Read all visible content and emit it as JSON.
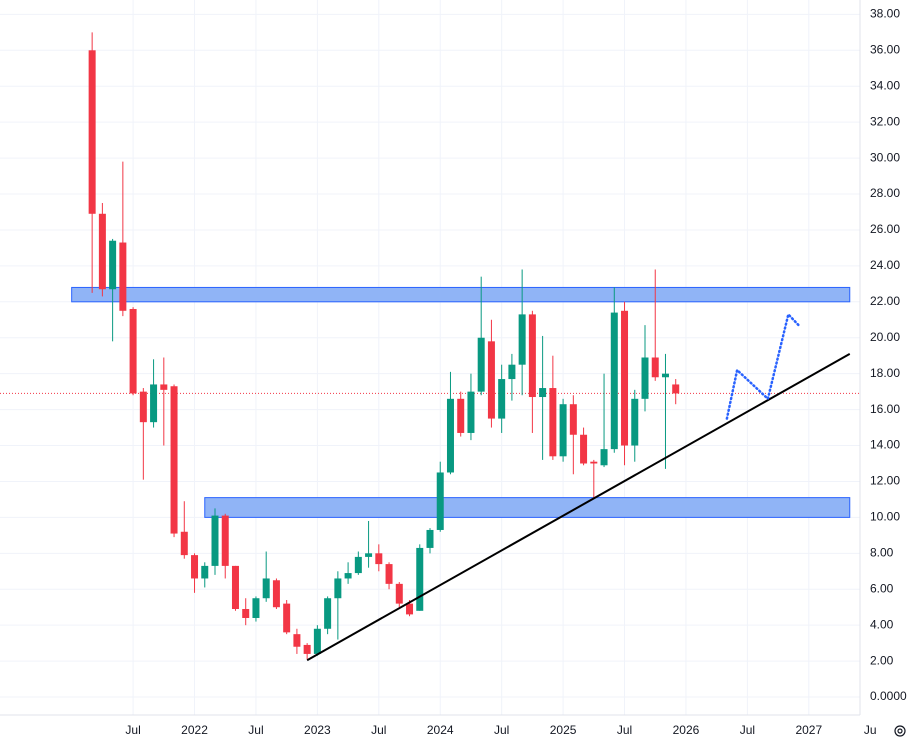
{
  "chart_data": {
    "type": "candlestick",
    "x": [
      "2021-03",
      "2021-04",
      "2021-05",
      "2021-06",
      "2021-07",
      "2021-08",
      "2021-09",
      "2021-10",
      "2021-11",
      "2021-12",
      "2022-01",
      "2022-02",
      "2022-03",
      "2022-04",
      "2022-05",
      "2022-06",
      "2022-07",
      "2022-08",
      "2022-09",
      "2022-10",
      "2022-11",
      "2022-12",
      "2023-01",
      "2023-02",
      "2023-03",
      "2023-04",
      "2023-05",
      "2023-06",
      "2023-07",
      "2023-08",
      "2023-09",
      "2023-10",
      "2023-11",
      "2023-12",
      "2024-01",
      "2024-02",
      "2024-03",
      "2024-04",
      "2024-05",
      "2024-06",
      "2024-07",
      "2024-08",
      "2024-09",
      "2024-10",
      "2024-11",
      "2024-12",
      "2025-01",
      "2025-02",
      "2025-03",
      "2025-04",
      "2025-05",
      "2025-06",
      "2025-07",
      "2025-08",
      "2025-09",
      "2025-10",
      "2025-11",
      "2025-12"
    ],
    "open": [
      36,
      26.9,
      22.7,
      25.3,
      21.6,
      17,
      15.3,
      17.4,
      17.3,
      9.2,
      7.9,
      6.6,
      7.3,
      10.1,
      7.3,
      4.9,
      4.4,
      5.5,
      6.5,
      5.2,
      3.5,
      2.9,
      2.4,
      3.8,
      5.5,
      6.6,
      6.9,
      7.8,
      8.0,
      7.4,
      6.3,
      5.2,
      4.8,
      8.3,
      9.3,
      12.5,
      16.6,
      14.7,
      17.0,
      19.8,
      15.5,
      17.7,
      18.5,
      21.3,
      16.7,
      17.2,
      13.4,
      16.3,
      14.6,
      13.1,
      12.9,
      13.8,
      21.5,
      14.0,
      16.6,
      18.9,
      17.8,
      17.4
    ],
    "high": [
      37,
      27.5,
      25.5,
      29.8,
      21.7,
      17.2,
      18.8,
      18.9,
      17.4,
      10.9,
      8.0,
      7.5,
      10.5,
      10.2,
      7.3,
      5.5,
      5.6,
      8.1,
      6.6,
      5.4,
      3.8,
      3.0,
      4.0,
      5.6,
      7.0,
      7.5,
      8.1,
      9.8,
      8.5,
      7.5,
      6.4,
      5.4,
      8.5,
      9.4,
      13.1,
      18.1,
      17.0,
      18.0,
      23.4,
      21.0,
      18.5,
      19.1,
      23.8,
      21.5,
      20.1,
      19.0,
      16.6,
      16.8,
      15.0,
      13.2,
      18.0,
      22.8,
      22.0,
      17.1,
      20.7,
      23.8,
      19.1,
      17.7
    ],
    "low": [
      22.5,
      22.3,
      19.8,
      21.2,
      16.8,
      12.1,
      15.0,
      14.0,
      8.9,
      7.7,
      5.8,
      6.1,
      6.8,
      6.6,
      4.8,
      4.0,
      4.2,
      5.3,
      4.9,
      3.5,
      2.4,
      2.1,
      2.3,
      3.5,
      3.2,
      6.3,
      6.8,
      7.2,
      7.0,
      6.0,
      5.0,
      4.5,
      4.8,
      8.0,
      9.2,
      12.4,
      14.5,
      14.3,
      16.8,
      15.0,
      14.7,
      16.5,
      16.8,
      14.7,
      13.2,
      13.2,
      13.1,
      12.4,
      12.9,
      11.1,
      12.8,
      13.6,
      12.9,
      13.1,
      15.9,
      17.6,
      12.7,
      16.3
    ],
    "close": [
      26.9,
      22.7,
      25.4,
      21.5,
      16.9,
      15.3,
      17.4,
      17.1,
      9.1,
      7.9,
      6.6,
      7.3,
      10.1,
      7.3,
      4.9,
      4.4,
      5.5,
      6.6,
      5.0,
      3.6,
      2.8,
      2.4,
      3.8,
      5.5,
      6.6,
      6.9,
      7.8,
      8.0,
      7.4,
      6.3,
      5.2,
      4.6,
      8.3,
      9.3,
      12.5,
      16.6,
      14.7,
      17.0,
      20.0,
      15.5,
      17.7,
      18.5,
      21.3,
      16.7,
      17.2,
      13.4,
      16.3,
      14.6,
      13.0,
      13.0,
      13.8,
      21.4,
      14.0,
      16.6,
      18.9,
      17.8,
      18.0,
      16.9
    ],
    "up_color": "#089981",
    "down_color": "#f23645",
    "xlim": [
      "2020-06",
      "2027-06"
    ],
    "xticks": [
      {
        "value": "2021-07",
        "label": "Jul"
      },
      {
        "value": "2022-01",
        "label": "2022"
      },
      {
        "value": "2022-07",
        "label": "Jul"
      },
      {
        "value": "2023-01",
        "label": "2023"
      },
      {
        "value": "2023-07",
        "label": "Jul"
      },
      {
        "value": "2024-01",
        "label": "2024"
      },
      {
        "value": "2024-07",
        "label": "Jul"
      },
      {
        "value": "2025-01",
        "label": "2025"
      },
      {
        "value": "2025-07",
        "label": "Jul"
      },
      {
        "value": "2026-01",
        "label": "2026"
      },
      {
        "value": "2026-07",
        "label": "Jul"
      },
      {
        "value": "2027-01",
        "label": "2027"
      },
      {
        "value": "2027-07",
        "label": "Ju"
      }
    ],
    "ylim": [
      -1,
      38.8
    ],
    "yticks": [
      {
        "value": 0,
        "label": "0.0000"
      },
      {
        "value": 2,
        "label": "2.00"
      },
      {
        "value": 4,
        "label": "4.00"
      },
      {
        "value": 6,
        "label": "6.00"
      },
      {
        "value": 8,
        "label": "8.00"
      },
      {
        "value": 10,
        "label": "10.00"
      },
      {
        "value": 12,
        "label": "12.00"
      },
      {
        "value": 14,
        "label": "14.00"
      },
      {
        "value": 16,
        "label": "16.00"
      },
      {
        "value": 18,
        "label": "18.00"
      },
      {
        "value": 20,
        "label": "20.00"
      },
      {
        "value": 22,
        "label": "22.00"
      },
      {
        "value": 24,
        "label": "24.00"
      },
      {
        "value": 26,
        "label": "26.00"
      },
      {
        "value": 28,
        "label": "28.00"
      },
      {
        "value": 30,
        "label": "30.00"
      },
      {
        "value": 32,
        "label": "32.00"
      },
      {
        "value": 34,
        "label": "34.00"
      },
      {
        "value": 36,
        "label": "36.00"
      },
      {
        "value": 38,
        "label": "38.00"
      }
    ],
    "grid": true,
    "zones": [
      {
        "x": [
          "2021-01",
          "2027-05"
        ],
        "y": [
          22.0,
          22.8
        ],
        "color": "#90b4f6"
      },
      {
        "x": [
          "2022-02",
          "2027-05"
        ],
        "y": [
          10.0,
          11.1
        ],
        "color": "#90b4f6"
      }
    ],
    "trendline": {
      "x": [
        "2022-12",
        "2027-05"
      ],
      "y": [
        2.05,
        19.1
      ],
      "color": "#000000"
    },
    "projection": {
      "x": [
        "2026-05",
        "2026-06",
        "2026-09",
        "2026-11",
        "2026-12"
      ],
      "y": [
        15.5,
        18.2,
        16.6,
        21.3,
        20.7
      ],
      "color": "#2962ff"
    }
  }
}
